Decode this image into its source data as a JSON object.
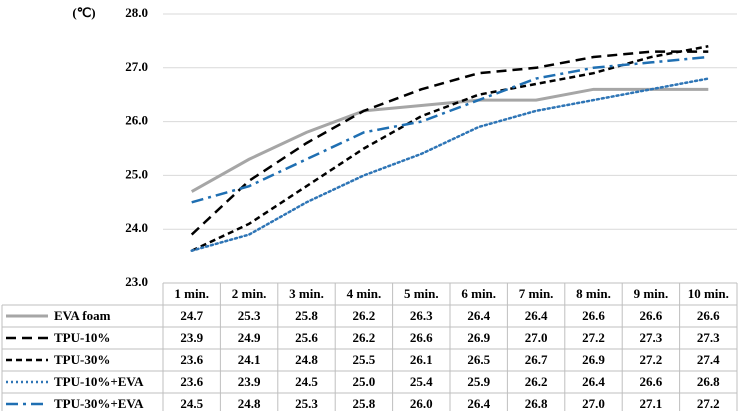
{
  "chart_data": {
    "type": "line",
    "y_label": "(℃)",
    "categories": [
      "1 min.",
      "2 min.",
      "3 min.",
      "4 min.",
      "5 min.",
      "6 min.",
      "7 min.",
      "8 min.",
      "9 min.",
      "10 min."
    ],
    "ylim": [
      23,
      28
    ],
    "yticks": [
      {
        "value": 23,
        "label": "23.0"
      },
      {
        "value": 24,
        "label": "24.0"
      },
      {
        "value": 25,
        "label": "25.0"
      },
      {
        "value": 26,
        "label": "26.0"
      },
      {
        "value": 27,
        "label": "27.0"
      },
      {
        "value": 28,
        "label": "28.0"
      }
    ],
    "grid": true,
    "data_table": true,
    "series": [
      {
        "name": "EVA foam",
        "color": "#a6a6a6",
        "line_style": "solid",
        "values": [
          24.7,
          25.3,
          25.8,
          26.2,
          26.3,
          26.4,
          26.4,
          26.6,
          26.6,
          26.6
        ],
        "value_labels": [
          "24.7",
          "25.3",
          "25.8",
          "26.2",
          "26.3",
          "26.4",
          "26.4",
          "26.6",
          "26.6",
          "26.6"
        ]
      },
      {
        "name": "TPU-10%",
        "color": "#000000",
        "line_style": "long-dash",
        "values": [
          23.9,
          24.9,
          25.6,
          26.2,
          26.6,
          26.9,
          27.0,
          27.2,
          27.3,
          27.3
        ],
        "value_labels": [
          "23.9",
          "24.9",
          "25.6",
          "26.2",
          "26.6",
          "26.9",
          "27.0",
          "27.2",
          "27.3",
          "27.3"
        ]
      },
      {
        "name": "TPU-30%",
        "color": "#000000",
        "line_style": "dash",
        "values": [
          23.6,
          24.1,
          24.8,
          25.5,
          26.1,
          26.5,
          26.7,
          26.9,
          27.2,
          27.4
        ],
        "value_labels": [
          "23.6",
          "24.1",
          "24.8",
          "25.5",
          "26.1",
          "26.5",
          "26.7",
          "26.9",
          "27.2",
          "27.4"
        ]
      },
      {
        "name": "TPU-10%+EVA",
        "color": "#2e75b6",
        "line_style": "dot",
        "values": [
          23.6,
          23.9,
          24.5,
          25.0,
          25.4,
          25.9,
          26.2,
          26.4,
          26.6,
          26.8
        ],
        "value_labels": [
          "23.6",
          "23.9",
          "24.5",
          "25.0",
          "25.4",
          "25.9",
          "26.2",
          "26.4",
          "26.6",
          "26.8"
        ]
      },
      {
        "name": "TPU-30%+EVA",
        "color": "#1f6fb2",
        "line_style": "dash-dot",
        "values": [
          24.5,
          24.8,
          25.3,
          25.8,
          26.0,
          26.4,
          26.8,
          27.0,
          27.1,
          27.2
        ],
        "value_labels": [
          "24.5",
          "24.8",
          "25.3",
          "25.8",
          "26.0",
          "26.4",
          "26.8",
          "27.0",
          "27.1",
          "27.2"
        ]
      }
    ]
  }
}
